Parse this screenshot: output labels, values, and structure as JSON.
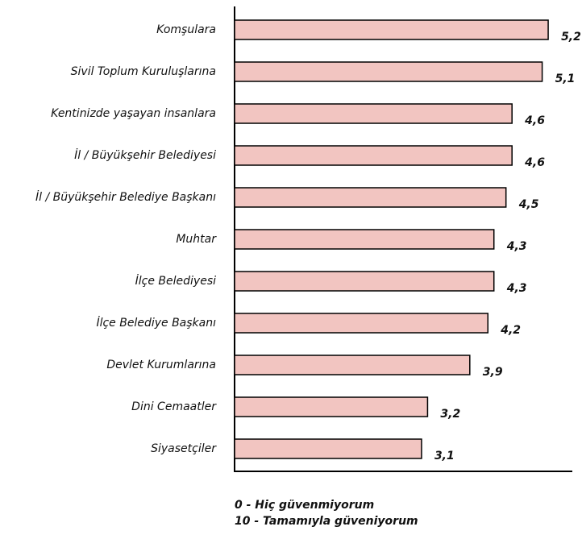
{
  "chart_data": {
    "type": "bar",
    "orientation": "horizontal",
    "categories": [
      "Komşulara",
      "Sivil Toplum Kuruluşlarına",
      "Kentinizde yaşayan insanlara",
      "İl / Büyükşehir Belediyesi",
      "İl / Büyükşehir Belediye Başkanı",
      "Muhtar",
      "İlçe Belediyesi",
      "İlçe Belediye Başkanı",
      "Devlet Kurumlarına",
      "Dini Cemaatler",
      "Siyasetçiler"
    ],
    "values": [
      5.2,
      5.1,
      4.6,
      4.6,
      4.5,
      4.3,
      4.3,
      4.2,
      3.9,
      3.2,
      3.1
    ],
    "value_labels": [
      "5,2",
      "5,1",
      "4,6",
      "4,6",
      "4,5",
      "4,3",
      "4,3",
      "4,2",
      "3,9",
      "3,2",
      "3,1"
    ],
    "color": "#f2c5c1",
    "xlim": [
      0,
      5.6
    ],
    "annotations": [
      "0 - Hiç güvenmiyorum",
      "10 - Tamamıyla güveniyorum"
    ]
  }
}
